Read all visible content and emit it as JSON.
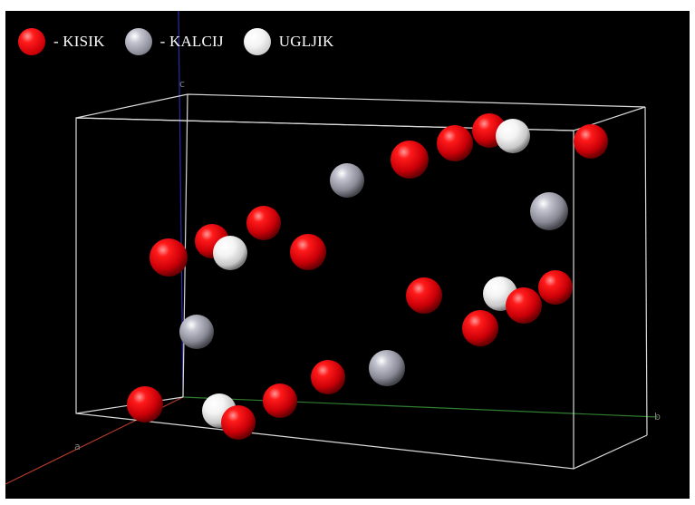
{
  "legend": {
    "items": [
      {
        "label": "- KISIK",
        "element": "oxygen",
        "color": "#e5000a"
      },
      {
        "label": "- KALCIJ",
        "element": "calcium",
        "color": "#9a9aa6"
      },
      {
        "label": "UGLJIK",
        "element": "carbon",
        "color": "#f0f0f0"
      }
    ]
  },
  "axes": {
    "a": {
      "label": "a",
      "color": "#b33a2b"
    },
    "b": {
      "label": "b",
      "color": "#2f7d2f"
    },
    "c": {
      "label": "c",
      "color": "#2a2aa8"
    }
  },
  "colors": {
    "background": "#000000",
    "cell_edge": "#d9d9d9",
    "oxygen": "#e5000a",
    "calcium": "#9a9aa6",
    "carbon": "#f0f0f0"
  }
}
